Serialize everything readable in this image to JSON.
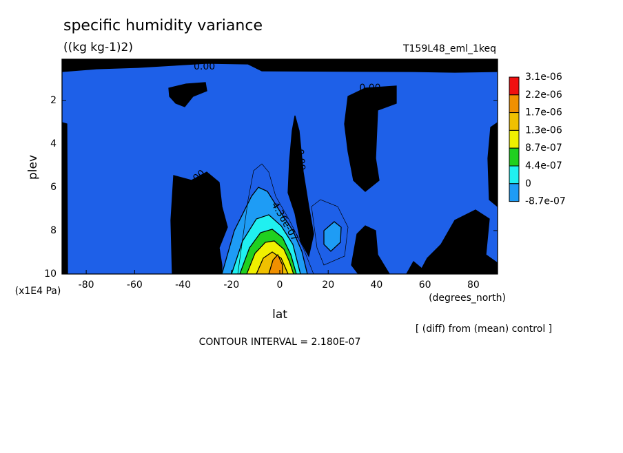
{
  "chart_data": {
    "type": "contour",
    "title": "specific humidity variance",
    "subtitle": "((kg kg-1)2)",
    "run_name": "T159L48_eml_1keq",
    "xlabel": "lat",
    "x_units": "(degrees_north)",
    "ylabel": "plev",
    "y_units": "(x1E4 Pa)",
    "note": "[ (diff) from (mean) control ]",
    "contour_interval": "CONTOUR INTERVAL = 2.180E-07",
    "xlim": [
      -90,
      90
    ],
    "xticks": [
      -80,
      -60,
      -40,
      -20,
      0,
      20,
      40,
      60,
      80
    ],
    "ylim": [
      10,
      0.1
    ],
    "yticks": [
      2,
      4,
      6,
      8,
      10
    ],
    "levels": [
      {
        "value": 3.1e-06,
        "label": "3.1e-06"
      },
      {
        "value": 2.2e-06,
        "label": "2.2e-06"
      },
      {
        "value": 1.7e-06,
        "label": "1.7e-06"
      },
      {
        "value": 1.3e-06,
        "label": "1.3e-06"
      },
      {
        "value": 8.7e-07,
        "label": "8.7e-07"
      },
      {
        "value": 4.4e-07,
        "label": "4.4e-07"
      },
      {
        "value": 0,
        "label": "0"
      },
      {
        "value": -8.7e-07,
        "label": "-8.7e-07"
      }
    ],
    "colors": [
      "#f01010",
      "#f09000",
      "#f0c000",
      "#f0f000",
      "#20d020",
      "#20f0f0",
      "#1e9cf5",
      "#1e60e8"
    ],
    "contour_labels": [
      "0.00",
      "0.00",
      "0.00",
      "0.00",
      "0.00",
      "0.00",
      "0.00",
      "4.36e-07"
    ]
  }
}
